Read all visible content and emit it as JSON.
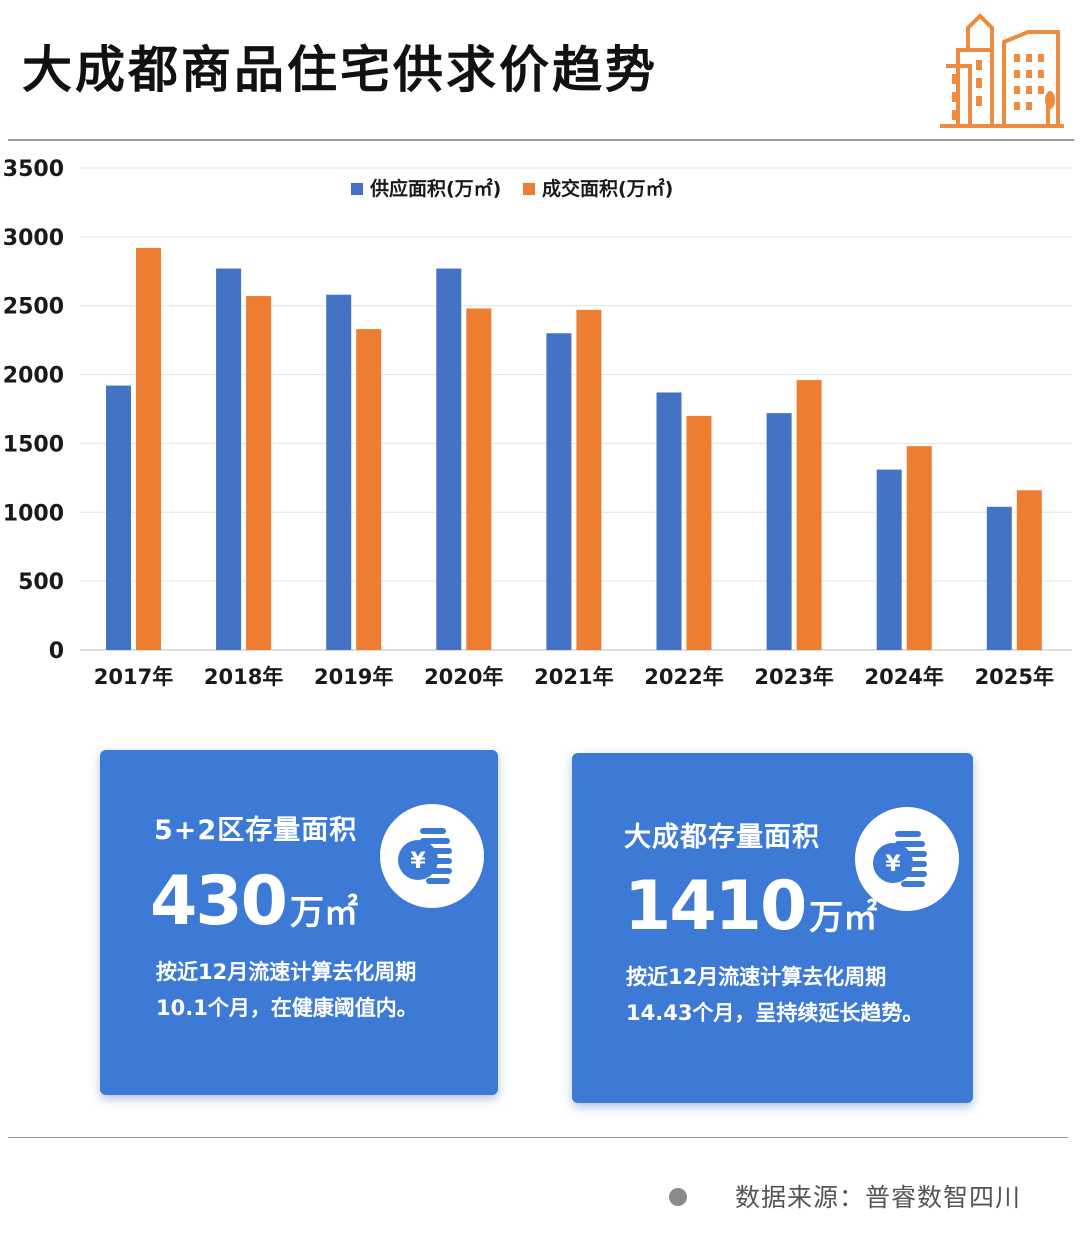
{
  "header": {
    "title": "大成都商品住宅供求价趋势"
  },
  "icons": {
    "header": "city-buildings-icon",
    "card": "yuan-coin-icon"
  },
  "colors": {
    "supply": "#4472c4",
    "deal": "#ed7d31",
    "card_bg": "#3d7ad6",
    "icon_orange": "#ee8a3e"
  },
  "chart_data": {
    "type": "bar",
    "categories": [
      "2017年",
      "2018年",
      "2019年",
      "2020年",
      "2021年",
      "2022年",
      "2023年",
      "2024年",
      "2025年"
    ],
    "series": [
      {
        "name": "供应面积(万㎡)",
        "values": [
          1920,
          2770,
          2580,
          2770,
          2300,
          1870,
          1720,
          1310,
          1040
        ]
      },
      {
        "name": "成交面积(万㎡)",
        "values": [
          2920,
          2570,
          2330,
          2480,
          2470,
          1700,
          1960,
          1480,
          1160
        ]
      }
    ],
    "y_ticks": [
      "0",
      "500",
      "1000",
      "1500",
      "2000",
      "2500",
      "3000",
      "3500"
    ],
    "ylim": [
      0,
      3500
    ],
    "grid": true,
    "legend": "top-center"
  },
  "cards": [
    {
      "label": "5+2区存量面积",
      "value": "430",
      "unit": "万㎡",
      "desc": "按近12月流速计算去化周期10.1个月，在健康阈值内。"
    },
    {
      "label": "大成都存量面积",
      "value": "1410",
      "unit": "万㎡",
      "desc": "按近12月流速计算去化周期14.43个月，呈持续延长趋势。"
    }
  ],
  "footer": {
    "source": "数据来源：普睿数智四川"
  }
}
